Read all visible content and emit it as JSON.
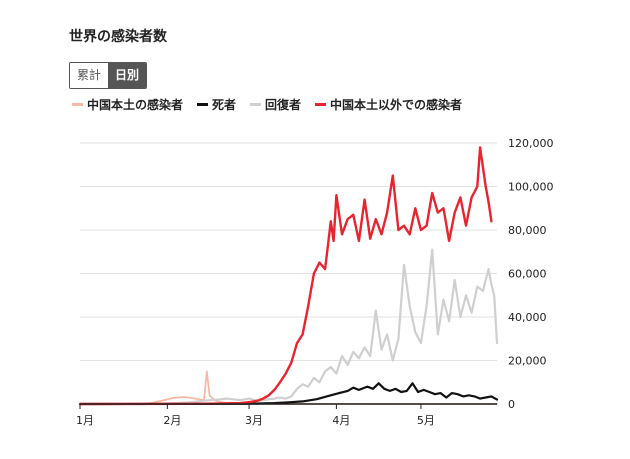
{
  "title": "世界の感染者数",
  "toggle": {
    "cumulative": "累計",
    "daily": "日別"
  },
  "chart_data": {
    "type": "line",
    "title": "世界の感染者数",
    "xlabel": "",
    "ylabel": "",
    "ylim": [
      0,
      120000
    ],
    "y_ticks": [
      0,
      20000,
      40000,
      60000,
      80000,
      100000,
      120000
    ],
    "y_tick_labels": [
      "0",
      "20,000",
      "40,000",
      "60,000",
      "80,000",
      "100,000",
      "120,000"
    ],
    "x_tick_labels": [
      {
        "label": "1月",
        "day": 1
      },
      {
        "label": "2月",
        "day": 32
      },
      {
        "label": "3月",
        "day": 61
      },
      {
        "label": "4月",
        "day": 92
      },
      {
        "label": "5月",
        "day": 122
      }
    ],
    "x_range": [
      1,
      149
    ],
    "grid": "horizontal",
    "legend_position": "top-left",
    "series": [
      {
        "name": "中国本土の感染者",
        "color": "#f6b9a6",
        "points": [
          [
            1,
            0
          ],
          [
            20,
            100
          ],
          [
            26,
            400
          ],
          [
            30,
            1500
          ],
          [
            34,
            2800
          ],
          [
            38,
            3200
          ],
          [
            42,
            2500
          ],
          [
            44,
            2000
          ],
          [
            45,
            1800
          ],
          [
            46,
            15000
          ],
          [
            47,
            4000
          ],
          [
            49,
            1500
          ],
          [
            52,
            600
          ],
          [
            56,
            500
          ],
          [
            60,
            200
          ],
          [
            70,
            100
          ],
          [
            90,
            60
          ],
          [
            120,
            20
          ],
          [
            149,
            10
          ]
        ]
      },
      {
        "name": "死者",
        "color": "#111111",
        "points": [
          [
            1,
            0
          ],
          [
            40,
            60
          ],
          [
            60,
            100
          ],
          [
            70,
            400
          ],
          [
            75,
            800
          ],
          [
            80,
            1200
          ],
          [
            85,
            2200
          ],
          [
            90,
            4000
          ],
          [
            93,
            5000
          ],
          [
            96,
            6000
          ],
          [
            98,
            7500
          ],
          [
            100,
            6500
          ],
          [
            103,
            8000
          ],
          [
            105,
            7000
          ],
          [
            107,
            9500
          ],
          [
            109,
            7000
          ],
          [
            111,
            6000
          ],
          [
            113,
            7000
          ],
          [
            115,
            5500
          ],
          [
            117,
            6000
          ],
          [
            119,
            9500
          ],
          [
            121,
            5500
          ],
          [
            123,
            6500
          ],
          [
            125,
            5500
          ],
          [
            127,
            4500
          ],
          [
            129,
            5000
          ],
          [
            131,
            3000
          ],
          [
            133,
            5000
          ],
          [
            135,
            4500
          ],
          [
            137,
            3500
          ],
          [
            139,
            4000
          ],
          [
            141,
            3500
          ],
          [
            143,
            2500
          ],
          [
            145,
            3000
          ],
          [
            147,
            3500
          ],
          [
            149,
            2000
          ]
        ]
      },
      {
        "name": "回復者",
        "color": "#cfcfcf",
        "points": [
          [
            1,
            0
          ],
          [
            30,
            100
          ],
          [
            40,
            800
          ],
          [
            45,
            1500
          ],
          [
            50,
            2000
          ],
          [
            53,
            2500
          ],
          [
            55,
            2200
          ],
          [
            58,
            1800
          ],
          [
            61,
            2500
          ],
          [
            64,
            1500
          ],
          [
            67,
            2000
          ],
          [
            70,
            2500
          ],
          [
            72,
            3000
          ],
          [
            74,
            2500
          ],
          [
            76,
            3500
          ],
          [
            78,
            7000
          ],
          [
            80,
            9000
          ],
          [
            82,
            8000
          ],
          [
            84,
            12000
          ],
          [
            86,
            10000
          ],
          [
            88,
            15000
          ],
          [
            90,
            17000
          ],
          [
            92,
            14000
          ],
          [
            94,
            22000
          ],
          [
            96,
            18000
          ],
          [
            98,
            24000
          ],
          [
            100,
            21000
          ],
          [
            102,
            26000
          ],
          [
            104,
            22000
          ],
          [
            106,
            43000
          ],
          [
            108,
            25000
          ],
          [
            110,
            32000
          ],
          [
            112,
            20000
          ],
          [
            114,
            30000
          ],
          [
            116,
            64000
          ],
          [
            118,
            45000
          ],
          [
            120,
            33000
          ],
          [
            122,
            28000
          ],
          [
            124,
            45000
          ],
          [
            126,
            71000
          ],
          [
            128,
            32000
          ],
          [
            130,
            48000
          ],
          [
            132,
            38000
          ],
          [
            134,
            57000
          ],
          [
            136,
            40000
          ],
          [
            138,
            50000
          ],
          [
            140,
            42000
          ],
          [
            142,
            54000
          ],
          [
            144,
            52000
          ],
          [
            146,
            62000
          ],
          [
            147,
            55000
          ],
          [
            148,
            50000
          ],
          [
            149,
            28000
          ]
        ]
      },
      {
        "name": "中国本土以外での感染者",
        "color": "#e8252f",
        "points": [
          [
            1,
            0
          ],
          [
            40,
            100
          ],
          [
            50,
            200
          ],
          [
            58,
            400
          ],
          [
            62,
            1000
          ],
          [
            64,
            1500
          ],
          [
            66,
            2500
          ],
          [
            68,
            4000
          ],
          [
            70,
            6500
          ],
          [
            72,
            10000
          ],
          [
            74,
            14000
          ],
          [
            76,
            19000
          ],
          [
            78,
            28000
          ],
          [
            80,
            32000
          ],
          [
            82,
            45000
          ],
          [
            84,
            60000
          ],
          [
            86,
            65000
          ],
          [
            88,
            62000
          ],
          [
            90,
            84000
          ],
          [
            91,
            75000
          ],
          [
            92,
            96000
          ],
          [
            94,
            78000
          ],
          [
            96,
            85000
          ],
          [
            98,
            87000
          ],
          [
            100,
            75000
          ],
          [
            102,
            94000
          ],
          [
            104,
            76000
          ],
          [
            106,
            85000
          ],
          [
            108,
            78000
          ],
          [
            110,
            88000
          ],
          [
            112,
            105000
          ],
          [
            114,
            80000
          ],
          [
            116,
            82000
          ],
          [
            118,
            78000
          ],
          [
            120,
            90000
          ],
          [
            122,
            80000
          ],
          [
            124,
            82000
          ],
          [
            126,
            97000
          ],
          [
            128,
            88000
          ],
          [
            130,
            90000
          ],
          [
            132,
            75000
          ],
          [
            134,
            88000
          ],
          [
            136,
            95000
          ],
          [
            138,
            82000
          ],
          [
            140,
            95000
          ],
          [
            142,
            100000
          ],
          [
            143,
            118000
          ],
          [
            145,
            100000
          ],
          [
            146,
            93000
          ],
          [
            147,
            84000
          ]
        ]
      }
    ]
  }
}
